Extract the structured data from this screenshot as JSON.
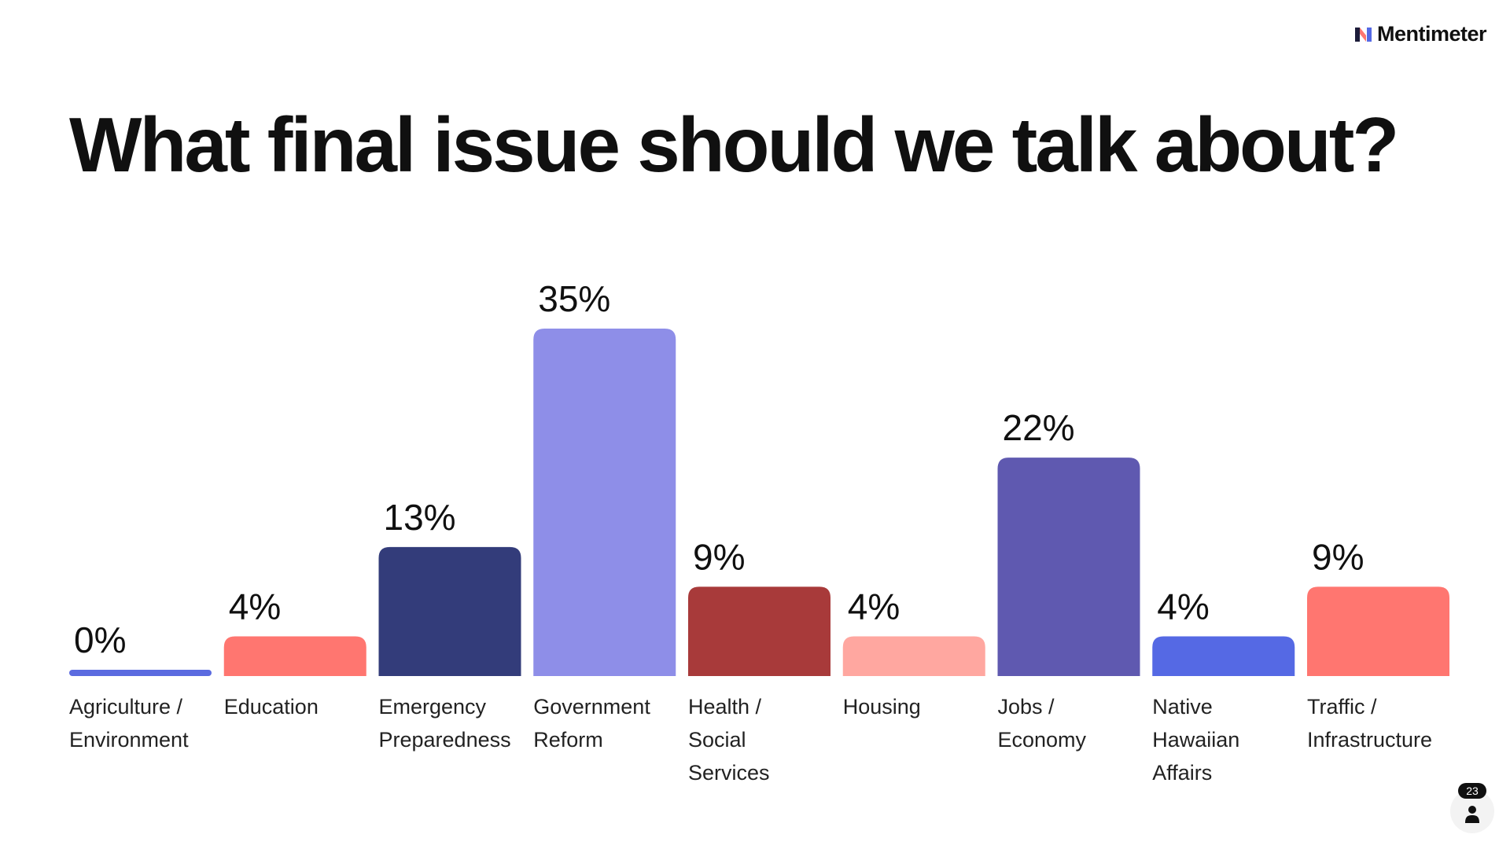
{
  "brand": {
    "name": "Mentimeter"
  },
  "title": "What final issue should we talk about?",
  "participants": {
    "count": "23"
  },
  "chart_data": {
    "type": "bar",
    "title": "What final issue should we talk about?",
    "categories": [
      [
        "Agriculture /",
        "Environment"
      ],
      [
        "Education"
      ],
      [
        "Emergency",
        "Preparedness"
      ],
      [
        "Government",
        "Reform"
      ],
      [
        "Health /",
        "Social",
        "Services"
      ],
      [
        "Housing"
      ],
      [
        "Jobs /",
        "Economy"
      ],
      [
        "Native",
        "Hawaiian",
        "Affairs"
      ],
      [
        "Traffic /",
        "Infrastructure"
      ]
    ],
    "values": [
      0,
      4,
      13,
      35,
      9,
      4,
      22,
      4,
      9
    ],
    "value_suffix": "%",
    "colors": [
      "#5b6be0",
      "#ff7670",
      "#333c7a",
      "#8e8ee8",
      "#a83a3a",
      "#ffa7a0",
      "#5f59b0",
      "#5569e4",
      "#ff7670"
    ],
    "xlabel": "",
    "ylabel": "",
    "ylim": [
      0,
      35
    ],
    "grid": false,
    "legend": "none"
  }
}
